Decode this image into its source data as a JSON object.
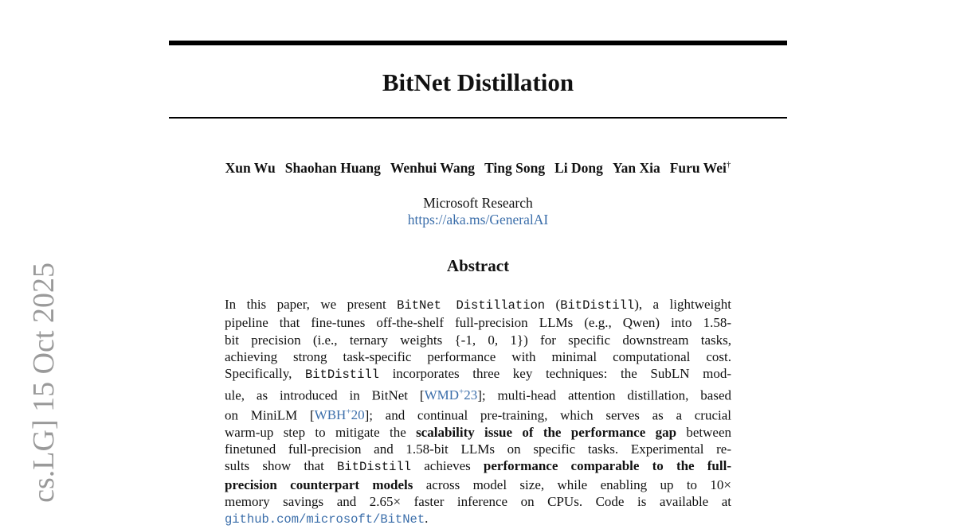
{
  "stamp": "cs.LG]  15 Oct 2025",
  "title": "BitNet Distillation",
  "authors": [
    "Xun Wu",
    "Shaohan Huang",
    "Wenhui Wang",
    "Ting Song",
    "Li Dong",
    "Yan Xia",
    "Furu Wei"
  ],
  "author_mark": "†",
  "affiliation": "Microsoft Research",
  "url": "https://aka.ms/GeneralAI",
  "abstract": {
    "heading": "Abstract",
    "lines": [
      [
        "In this paper, we present ",
        "BitNet Distillation",
        " (",
        "BitDistill",
        "), a lightweight"
      ],
      [
        "pipeline that fine-tunes off-the-shelf full-precision LLMs (e.g., Qwen) into 1.58-"
      ],
      [
        "bit precision (i.e., ternary weights {-1, 0, 1}) for specific downstream tasks,"
      ],
      [
        "achieving strong task-specific performance with minimal computational cost."
      ],
      [
        "Specifically, ",
        "BitDistill",
        " incorporates three key techniques: the SubLN mod-"
      ],
      [
        "ule, as introduced in BitNet [",
        "WMD",
        "+",
        "23",
        "]; multi-head attention distillation, based"
      ],
      [
        "on MiniLM [",
        "WBH",
        "+",
        "20",
        "]; and continual pre-training, which serves as a crucial"
      ],
      [
        "warm-up step to mitigate the ",
        "scalability issue of the performance gap",
        " between"
      ],
      [
        "finetuned full-precision and 1.58-bit LLMs on specific tasks.  Experimental re-"
      ],
      [
        "sults show that ",
        "BitDistill",
        " achieves ",
        "performance comparable to the full-"
      ],
      [
        "precision counterpart models",
        " across model size, while enabling up to 10×"
      ],
      [
        "memory savings and 2.65× faster inference on CPUs.  Code is available at"
      ],
      [
        "github.com/microsoft/BitNet",
        "."
      ]
    ]
  }
}
